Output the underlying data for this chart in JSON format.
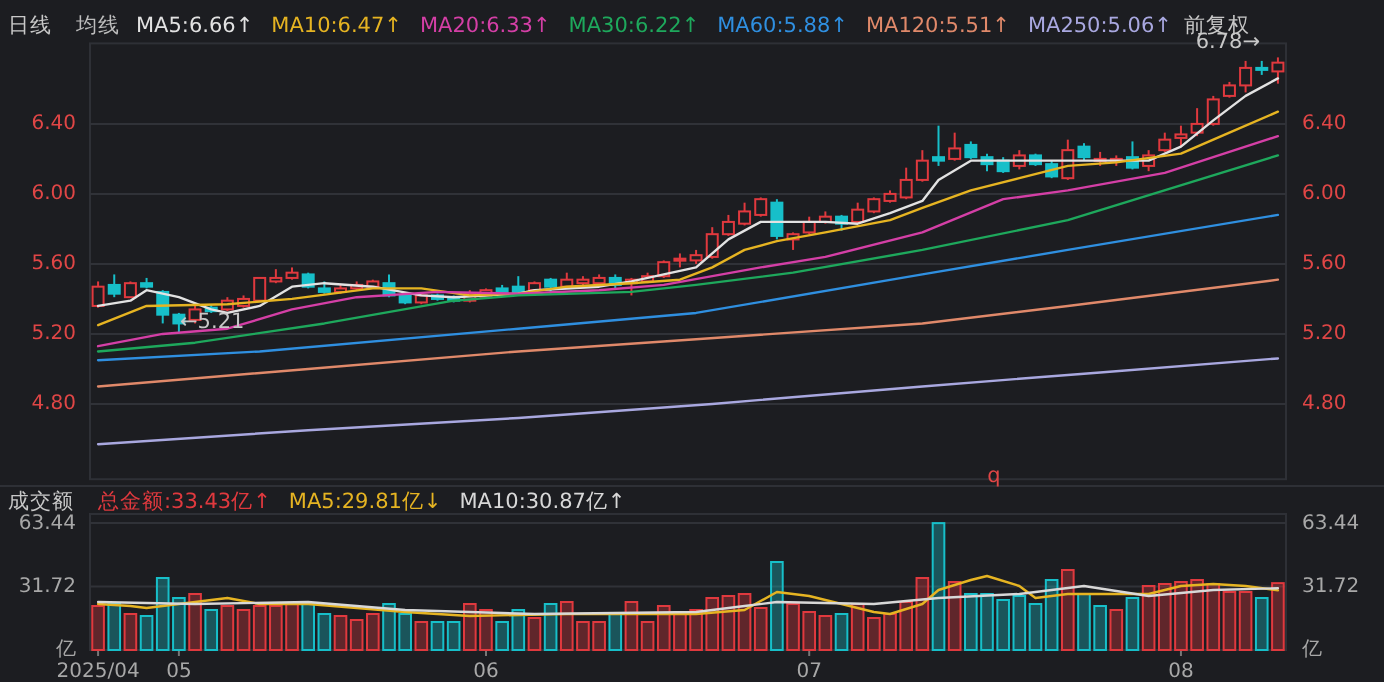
{
  "chart_data": [
    {
      "type": "candlestick",
      "title": "日线",
      "legend_title": "均线",
      "legend": "top",
      "grid": "y",
      "tick_labels": "y",
      "categories": [
        null,
        null,
        null,
        null,
        null,
        null,
        null,
        null,
        null,
        null,
        null,
        null,
        null,
        null,
        null,
        null,
        null,
        null,
        null,
        null,
        null,
        null,
        null,
        null,
        null,
        null,
        null,
        null,
        null,
        null,
        null,
        null,
        null,
        null,
        null,
        null,
        null,
        null,
        null,
        null,
        null,
        null,
        null,
        null,
        null,
        null,
        null,
        null,
        null,
        null,
        null,
        null,
        null,
        null,
        null,
        null,
        null,
        null,
        null,
        null,
        null,
        null,
        null,
        null,
        null,
        null,
        null,
        null,
        null,
        null,
        null,
        null,
        null,
        null
      ],
      "ylim": [
        4.37,
        6.86
      ],
      "yticks": [
        {
          "value": 4.8,
          "label": "4.80"
        },
        {
          "value": 5.2,
          "label": "5.20"
        },
        {
          "value": 5.6,
          "label": "5.60"
        },
        {
          "value": 6.0,
          "label": "6.00"
        },
        {
          "value": 6.4,
          "label": "6.40"
        }
      ],
      "y2lim": [
        4.37,
        6.86
      ],
      "y2ticks": [
        {
          "value": 4.8,
          "label": "4.80"
        },
        {
          "value": 5.2,
          "label": "5.20"
        },
        {
          "value": 5.6,
          "label": "5.60"
        },
        {
          "value": 6.0,
          "label": "6.00"
        },
        {
          "value": 6.4,
          "label": "6.40"
        }
      ],
      "ohlc": [
        [
          5.36,
          5.5,
          5.35,
          5.47
        ],
        [
          5.48,
          5.54,
          5.41,
          5.43
        ],
        [
          5.41,
          5.5,
          5.41,
          5.49
        ],
        [
          5.49,
          5.52,
          5.46,
          5.47
        ],
        [
          5.44,
          5.45,
          5.26,
          5.31
        ],
        [
          5.31,
          5.32,
          5.21,
          5.26
        ],
        [
          5.28,
          5.36,
          5.26,
          5.34
        ],
        [
          5.35,
          5.37,
          5.32,
          5.33
        ],
        [
          5.34,
          5.41,
          5.33,
          5.39
        ],
        [
          5.36,
          5.42,
          5.35,
          5.4
        ],
        [
          5.39,
          5.52,
          5.39,
          5.52
        ],
        [
          5.5,
          5.57,
          5.49,
          5.52
        ],
        [
          5.52,
          5.58,
          5.51,
          5.55
        ],
        [
          5.54,
          5.55,
          5.46,
          5.47
        ],
        [
          5.46,
          5.5,
          5.43,
          5.44
        ],
        [
          5.44,
          5.48,
          5.43,
          5.46
        ],
        [
          5.46,
          5.5,
          5.45,
          5.48
        ],
        [
          5.47,
          5.51,
          5.46,
          5.5
        ],
        [
          5.49,
          5.54,
          5.41,
          5.42
        ],
        [
          5.42,
          5.44,
          5.37,
          5.38
        ],
        [
          5.38,
          5.43,
          5.37,
          5.42
        ],
        [
          5.42,
          5.43,
          5.39,
          5.4
        ],
        [
          5.41,
          5.42,
          5.38,
          5.39
        ],
        [
          5.39,
          5.45,
          5.38,
          5.43
        ],
        [
          5.41,
          5.46,
          5.4,
          5.45
        ],
        [
          5.46,
          5.48,
          5.43,
          5.44
        ],
        [
          5.47,
          5.53,
          5.43,
          5.44
        ],
        [
          5.45,
          5.5,
          5.44,
          5.49
        ],
        [
          5.51,
          5.52,
          5.43,
          5.47
        ],
        [
          5.47,
          5.55,
          5.46,
          5.51
        ],
        [
          5.49,
          5.53,
          5.48,
          5.51
        ],
        [
          5.49,
          5.54,
          5.48,
          5.52
        ],
        [
          5.52,
          5.54,
          5.46,
          5.48
        ],
        [
          5.49,
          5.52,
          5.42,
          5.51
        ],
        [
          5.5,
          5.55,
          5.49,
          5.53
        ],
        [
          5.53,
          5.62,
          5.52,
          5.61
        ],
        [
          5.62,
          5.66,
          5.58,
          5.63
        ],
        [
          5.62,
          5.68,
          5.6,
          5.65
        ],
        [
          5.64,
          5.81,
          5.63,
          5.77
        ],
        [
          5.77,
          5.88,
          5.76,
          5.84
        ],
        [
          5.83,
          5.95,
          5.82,
          5.9
        ],
        [
          5.88,
          5.98,
          5.87,
          5.97
        ],
        [
          5.95,
          5.97,
          5.74,
          5.76
        ],
        [
          5.74,
          5.78,
          5.68,
          5.77
        ],
        [
          5.78,
          5.87,
          5.77,
          5.84
        ],
        [
          5.84,
          5.9,
          5.83,
          5.87
        ],
        [
          5.87,
          5.88,
          5.79,
          5.83
        ],
        [
          5.84,
          5.95,
          5.83,
          5.91
        ],
        [
          5.9,
          5.98,
          5.89,
          5.97
        ],
        [
          5.96,
          6.02,
          5.95,
          6.0
        ],
        [
          5.98,
          6.15,
          5.97,
          6.08
        ],
        [
          6.08,
          6.25,
          6.07,
          6.19
        ],
        [
          6.21,
          6.39,
          6.16,
          6.19
        ],
        [
          6.2,
          6.35,
          6.19,
          6.26
        ],
        [
          6.28,
          6.3,
          6.2,
          6.21
        ],
        [
          6.21,
          6.23,
          6.13,
          6.17
        ],
        [
          6.19,
          6.21,
          6.12,
          6.13
        ],
        [
          6.16,
          6.25,
          6.14,
          6.22
        ],
        [
          6.22,
          6.23,
          6.16,
          6.17
        ],
        [
          6.17,
          6.19,
          6.09,
          6.1
        ],
        [
          6.09,
          6.31,
          6.08,
          6.25
        ],
        [
          6.27,
          6.29,
          6.19,
          6.21
        ],
        [
          6.19,
          6.24,
          6.16,
          6.2
        ],
        [
          6.19,
          6.22,
          6.16,
          6.2
        ],
        [
          6.21,
          6.3,
          6.14,
          6.15
        ],
        [
          6.16,
          6.25,
          6.13,
          6.22
        ],
        [
          6.25,
          6.35,
          6.24,
          6.31
        ],
        [
          6.32,
          6.39,
          6.27,
          6.34
        ],
        [
          6.35,
          6.49,
          6.33,
          6.4
        ],
        [
          6.4,
          6.56,
          6.39,
          6.54
        ],
        [
          6.56,
          6.64,
          6.55,
          6.62
        ],
        [
          6.62,
          6.76,
          6.58,
          6.72
        ],
        [
          6.72,
          6.76,
          6.68,
          6.71
        ],
        [
          6.7,
          6.78,
          6.63,
          6.75
        ]
      ],
      "series": [
        {
          "type": "line",
          "name": "MA5:6.66↑",
          "color": "#e2e2e2",
          "values": [
            5.36,
            null,
            5.39,
            5.45,
            null,
            5.41,
            null,
            5.34,
            5.32,
            null,
            5.36,
            null,
            5.47,
            null,
            5.49,
            null,
            null,
            5.47,
            null,
            null,
            5.42,
            null,
            5.41,
            null,
            null,
            null,
            5.43,
            5.45,
            null,
            null,
            null,
            5.47,
            null,
            5.5,
            null,
            5.54,
            null,
            5.58,
            null,
            5.74,
            null,
            5.84,
            null,
            5.84,
            null,
            5.84,
            null,
            5.83,
            null,
            5.89,
            null,
            5.96,
            6.08,
            null,
            6.19,
            null,
            null,
            null,
            6.19,
            null,
            null,
            null,
            6.19,
            null,
            null,
            6.19,
            null,
            6.27,
            null,
            6.42,
            null,
            6.56,
            null,
            6.66
          ]
        },
        {
          "type": "line",
          "name": "MA10:6.47↑",
          "color": "#e6b422",
          "values": [
            5.25,
            null,
            null,
            5.36,
            null,
            null,
            null,
            null,
            5.37,
            null,
            null,
            null,
            5.4,
            null,
            null,
            null,
            null,
            5.46,
            null,
            null,
            5.46,
            null,
            null,
            5.42,
            null,
            null,
            5.43,
            null,
            null,
            5.47,
            null,
            null,
            null,
            5.49,
            null,
            null,
            5.51,
            null,
            5.58,
            null,
            5.68,
            null,
            5.73,
            null,
            null,
            5.78,
            null,
            null,
            null,
            5.85,
            null,
            5.92,
            null,
            null,
            6.02,
            null,
            null,
            6.09,
            null,
            null,
            6.16,
            null,
            null,
            6.18,
            null,
            null,
            null,
            6.23,
            null,
            null,
            6.35,
            null,
            null,
            6.47
          ]
        },
        {
          "type": "line",
          "name": "MA20:6.33↑",
          "color": "#d43fa6",
          "values": [
            5.13,
            null,
            null,
            null,
            5.2,
            null,
            null,
            null,
            5.23,
            null,
            null,
            null,
            5.34,
            null,
            null,
            null,
            5.41,
            null,
            null,
            null,
            null,
            5.44,
            null,
            null,
            null,
            null,
            5.43,
            null,
            null,
            null,
            null,
            5.45,
            null,
            null,
            null,
            5.48,
            null,
            null,
            null,
            null,
            null,
            5.58,
            null,
            null,
            null,
            5.64,
            null,
            null,
            null,
            null,
            null,
            5.78,
            null,
            null,
            null,
            null,
            5.97,
            null,
            null,
            null,
            6.02,
            null,
            null,
            null,
            null,
            null,
            6.12,
            null,
            null,
            null,
            null,
            null,
            null,
            6.33
          ]
        },
        {
          "type": "line",
          "name": "MA30:6.22↑",
          "color": "#1ea85c",
          "values": [
            5.1,
            null,
            null,
            null,
            null,
            null,
            5.15,
            null,
            null,
            null,
            null,
            null,
            null,
            null,
            5.26,
            null,
            null,
            null,
            null,
            null,
            null,
            null,
            5.39,
            null,
            null,
            null,
            5.42,
            null,
            null,
            null,
            null,
            null,
            null,
            5.44,
            null,
            null,
            null,
            5.48,
            null,
            null,
            null,
            null,
            null,
            5.55,
            null,
            null,
            null,
            null,
            null,
            null,
            null,
            5.68,
            null,
            null,
            null,
            null,
            null,
            null,
            null,
            null,
            5.85,
            null,
            null,
            null,
            null,
            null,
            null,
            null,
            null,
            null,
            null,
            null,
            null,
            6.22
          ]
        },
        {
          "type": "line",
          "name": "MA60:5.88↑",
          "color": "#2f8fe0",
          "values": [
            5.05,
            null,
            null,
            null,
            null,
            null,
            null,
            null,
            null,
            null,
            5.1,
            null,
            null,
            null,
            null,
            null,
            null,
            null,
            null,
            null,
            null,
            null,
            null,
            null,
            null,
            null,
            5.23,
            null,
            null,
            null,
            null,
            null,
            null,
            null,
            null,
            null,
            null,
            5.32,
            null,
            null,
            null,
            null,
            null,
            null,
            null,
            null,
            null,
            null,
            null,
            null,
            null,
            5.54,
            null,
            null,
            null,
            null,
            null,
            null,
            null,
            null,
            5.68,
            null,
            null,
            null,
            null,
            null,
            null,
            null,
            null,
            null,
            null,
            null,
            null,
            5.88
          ]
        },
        {
          "type": "line",
          "name": "MA120:5.51↑",
          "color": "#e0896a",
          "values": [
            4.9,
            null,
            null,
            null,
            null,
            null,
            null,
            null,
            null,
            null,
            null,
            null,
            null,
            5.0,
            null,
            null,
            null,
            null,
            null,
            null,
            null,
            null,
            null,
            null,
            null,
            null,
            5.1,
            null,
            null,
            null,
            null,
            null,
            null,
            null,
            null,
            null,
            null,
            5.17,
            null,
            null,
            null,
            null,
            null,
            null,
            null,
            null,
            null,
            null,
            null,
            null,
            null,
            5.26,
            null,
            null,
            null,
            null,
            null,
            null,
            null,
            null,
            5.36,
            null,
            null,
            null,
            null,
            null,
            null,
            null,
            null,
            null,
            null,
            null,
            null,
            5.51
          ]
        },
        {
          "type": "line",
          "name": "MA250:5.06↑",
          "color": "#a9a8e0",
          "values": [
            4.57,
            null,
            null,
            null,
            null,
            null,
            null,
            null,
            null,
            null,
            null,
            null,
            null,
            4.65,
            null,
            null,
            null,
            null,
            null,
            null,
            null,
            null,
            null,
            null,
            null,
            null,
            4.72,
            null,
            null,
            null,
            null,
            null,
            null,
            null,
            null,
            null,
            null,
            null,
            4.8,
            null,
            null,
            null,
            null,
            null,
            null,
            null,
            null,
            null,
            null,
            null,
            null,
            4.9,
            null,
            null,
            null,
            null,
            null,
            null,
            null,
            null,
            null,
            null,
            4.98,
            null,
            null,
            null,
            null,
            null,
            null,
            null,
            null,
            null,
            null,
            5.06
          ]
        }
      ],
      "annotations": [
        "前复权",
        "q",
        "6.78→",
        "←5.21"
      ]
    },
    {
      "type": "bar",
      "title": "成交额",
      "legend": "top",
      "grid": "y",
      "categories": [
        "2025/04",
        null,
        null,
        null,
        null,
        "05",
        null,
        null,
        null,
        null,
        null,
        null,
        null,
        null,
        null,
        null,
        null,
        null,
        null,
        null,
        null,
        null,
        null,
        null,
        "06",
        null,
        null,
        null,
        null,
        null,
        null,
        null,
        null,
        null,
        null,
        null,
        null,
        null,
        null,
        null,
        null,
        null,
        null,
        null,
        "07",
        null,
        null,
        null,
        null,
        null,
        null,
        null,
        null,
        null,
        null,
        null,
        null,
        null,
        null,
        null,
        null,
        null,
        null,
        null,
        null,
        null,
        null,
        "08",
        null,
        null,
        null,
        null,
        null,
        null
      ],
      "ylim": [
        0,
        68
      ],
      "yticks": [
        {
          "value": 0,
          "label": "亿"
        },
        31.72,
        63.44
      ],
      "y2lim": [
        0,
        68
      ],
      "y2ticks": [
        {
          "value": 0,
          "label": "亿"
        },
        31.72,
        63.44
      ],
      "series": [
        {
          "type": "bar",
          "name": "总金额:33.43亿↑",
          "color": "#e0393e",
          "values": [
            22,
            23,
            18,
            17,
            36,
            26,
            28,
            20,
            22,
            20,
            22,
            22,
            23,
            23,
            18,
            17,
            15,
            18,
            23,
            18,
            14,
            14,
            14,
            23,
            20,
            14,
            20,
            16,
            23,
            24,
            14,
            14,
            18,
            24,
            14,
            22,
            19,
            20,
            26,
            27,
            28,
            21,
            44,
            23,
            19,
            17,
            18,
            23,
            16,
            18,
            24,
            36,
            63.44,
            34,
            28,
            28,
            25,
            27,
            23,
            35,
            40,
            28,
            22,
            20,
            26,
            32,
            33,
            34,
            35,
            33,
            29,
            29,
            26,
            33.43
          ],
          "colors": [
            "#e0393e",
            "#17bfc9",
            "#e0393e",
            "#17bfc9",
            "#17bfc9",
            "#17bfc9",
            "#e0393e",
            "#17bfc9",
            "#e0393e",
            "#e0393e",
            "#e0393e",
            "#e0393e",
            "#e0393e",
            "#17bfc9",
            "#17bfc9",
            "#e0393e",
            "#e0393e",
            "#e0393e",
            "#17bfc9",
            "#17bfc9",
            "#e0393e",
            "#17bfc9",
            "#17bfc9",
            "#e0393e",
            "#e0393e",
            "#17bfc9",
            "#17bfc9",
            "#e0393e",
            "#17bfc9",
            "#e0393e",
            "#e0393e",
            "#e0393e",
            "#17bfc9",
            "#e0393e",
            "#e0393e",
            "#e0393e",
            "#e0393e",
            "#e0393e",
            "#e0393e",
            "#e0393e",
            "#e0393e",
            "#e0393e",
            "#17bfc9",
            "#e0393e",
            "#e0393e",
            "#e0393e",
            "#17bfc9",
            "#e0393e",
            "#e0393e",
            "#e0393e",
            "#e0393e",
            "#e0393e",
            "#17bfc9",
            "#e0393e",
            "#17bfc9",
            "#17bfc9",
            "#17bfc9",
            "#17bfc9",
            "#17bfc9",
            "#17bfc9",
            "#e0393e",
            "#17bfc9",
            "#17bfc9",
            "#e0393e",
            "#17bfc9",
            "#e0393e",
            "#e0393e",
            "#e0393e",
            "#e0393e",
            "#e0393e",
            "#e0393e",
            "#e0393e",
            "#17bfc9",
            "#e0393e"
          ]
        },
        {
          "type": "line",
          "name": "MA5:29.81亿↓",
          "color": "#e6b422",
          "values": [
            23,
            null,
            22,
            21,
            null,
            null,
            24,
            null,
            26,
            null,
            23,
            null,
            null,
            23,
            null,
            null,
            null,
            null,
            null,
            19,
            null,
            null,
            null,
            17,
            null,
            null,
            null,
            null,
            null,
            18,
            null,
            null,
            null,
            18,
            null,
            null,
            null,
            18,
            null,
            null,
            20,
            null,
            29,
            null,
            27,
            null,
            null,
            null,
            19,
            18,
            null,
            23,
            30,
            null,
            35,
            37,
            null,
            32,
            26,
            null,
            28,
            null,
            28,
            null,
            null,
            28,
            null,
            32,
            null,
            33,
            null,
            32,
            null,
            29.81
          ]
        },
        {
          "type": "line",
          "name": "MA10:30.87亿↑",
          "color": "#d8d8d8",
          "values": [
            24,
            null,
            null,
            null,
            null,
            null,
            23,
            null,
            null,
            null,
            null,
            null,
            null,
            24,
            null,
            null,
            null,
            null,
            null,
            20,
            null,
            null,
            null,
            null,
            null,
            null,
            null,
            18,
            null,
            null,
            null,
            null,
            null,
            null,
            null,
            null,
            null,
            19,
            null,
            null,
            22,
            null,
            24,
            null,
            null,
            null,
            null,
            null,
            23,
            null,
            null,
            null,
            26,
            null,
            null,
            null,
            null,
            28,
            null,
            null,
            null,
            32,
            null,
            null,
            null,
            27,
            null,
            null,
            null,
            30,
            null,
            null,
            null,
            30.87
          ]
        }
      ]
    }
  ]
}
